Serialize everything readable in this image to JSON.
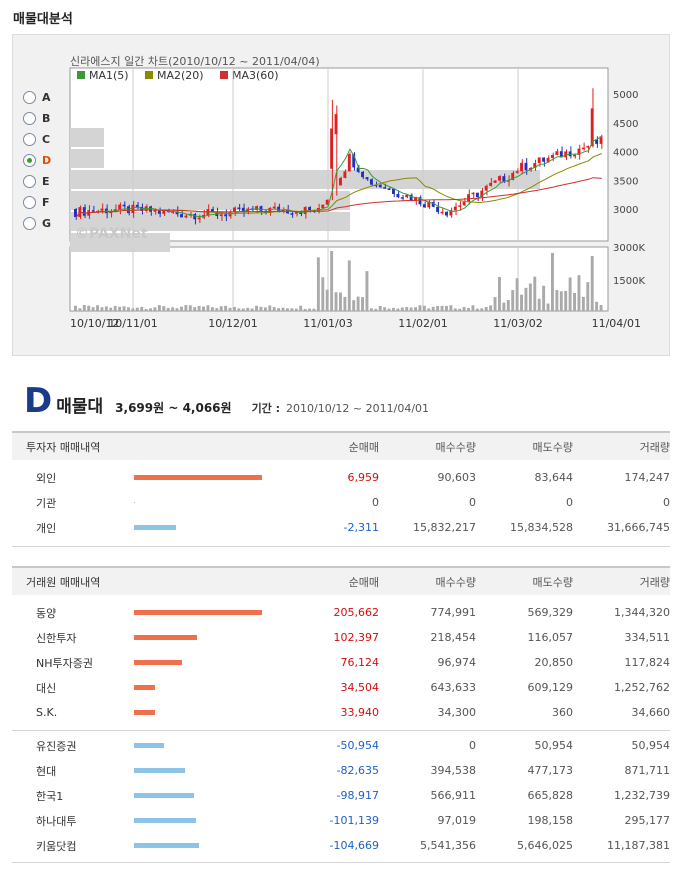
{
  "page": {
    "title": "매물대분석"
  },
  "chart": {
    "title": "신라에스지 일간 차트(2010/10/12 ~ 2011/04/04)",
    "legend": [
      {
        "label": "MA1(5)",
        "color": "#3a9a3a"
      },
      {
        "label": "MA2(20)",
        "color": "#8a8a00"
      },
      {
        "label": "MA3(60)",
        "color": "#d03030"
      }
    ],
    "watermark": "©PAXNet",
    "price_ticks": [
      "5000",
      "4500",
      "4000",
      "3500",
      "3000"
    ],
    "volume_ticks": [
      "3000K",
      "1500K"
    ],
    "x_ticks": [
      "10/10/12",
      "10/11/01",
      "10/12/01",
      "11/01/03",
      "11/02/01",
      "11/03/02",
      "11/04/01"
    ],
    "zones": [
      "A",
      "B",
      "C",
      "D",
      "E",
      "F",
      "G"
    ],
    "selected_zone": "D",
    "colors": {
      "up": "#e02020",
      "down": "#2030c0",
      "zone": "#d4d4d4",
      "volume": "#aaaaaa"
    }
  },
  "summary": {
    "letter": "D",
    "word": "매물대",
    "range": "3,699원 ~ 4,066원",
    "period_label": "기간 :",
    "period": "2010/10/12 ~ 2011/04/01"
  },
  "investor_table": {
    "headers": [
      "투자자 매매내역",
      "순매매",
      "매수수량",
      "매도수량",
      "거래량"
    ],
    "rows": [
      {
        "name": "외인",
        "net": "6,959",
        "buy": "90,603",
        "sell": "83,644",
        "volume": "174,247",
        "sign": "pos",
        "bar": 0.85
      },
      {
        "name": "기관",
        "net": "0",
        "buy": "0",
        "sell": "0",
        "volume": "0",
        "sign": "zero",
        "bar": 0.0
      },
      {
        "name": "개인",
        "net": "-2,311",
        "buy": "15,832,217",
        "sell": "15,834,528",
        "volume": "31,666,745",
        "sign": "neg",
        "bar": 0.28
      }
    ]
  },
  "broker_table": {
    "headers": [
      "거래원 매매내역",
      "순매매",
      "매수수량",
      "매도수량",
      "거래량"
    ],
    "buy_rows": [
      {
        "name": "동양",
        "net": "205,662",
        "buy": "774,991",
        "sell": "569,329",
        "volume": "1,344,320",
        "bar": 0.85
      },
      {
        "name": "신한투자",
        "net": "102,397",
        "buy": "218,454",
        "sell": "116,057",
        "volume": "334,511",
        "bar": 0.42
      },
      {
        "name": "NH투자증권",
        "net": "76,124",
        "buy": "96,974",
        "sell": "20,850",
        "volume": "117,824",
        "bar": 0.32
      },
      {
        "name": "대신",
        "net": "34,504",
        "buy": "643,633",
        "sell": "609,129",
        "volume": "1,252,762",
        "bar": 0.14
      },
      {
        "name": "S.K.",
        "net": "33,940",
        "buy": "34,300",
        "sell": "360",
        "volume": "34,660",
        "bar": 0.14
      }
    ],
    "sell_rows": [
      {
        "name": "유진증권",
        "net": "-50,954",
        "buy": "0",
        "sell": "50,954",
        "volume": "50,954",
        "bar": 0.2
      },
      {
        "name": "현대",
        "net": "-82,635",
        "buy": "394,538",
        "sell": "477,173",
        "volume": "871,711",
        "bar": 0.34
      },
      {
        "name": "한국1",
        "net": "-98,917",
        "buy": "566,911",
        "sell": "665,828",
        "volume": "1,232,739",
        "bar": 0.4
      },
      {
        "name": "하나대투",
        "net": "-101,139",
        "buy": "97,019",
        "sell": "198,158",
        "volume": "295,177",
        "bar": 0.41
      },
      {
        "name": "키움닷컴",
        "net": "-104,669",
        "buy": "5,541,356",
        "sell": "5,646,025",
        "volume": "11,187,381",
        "bar": 0.43
      }
    ]
  }
}
